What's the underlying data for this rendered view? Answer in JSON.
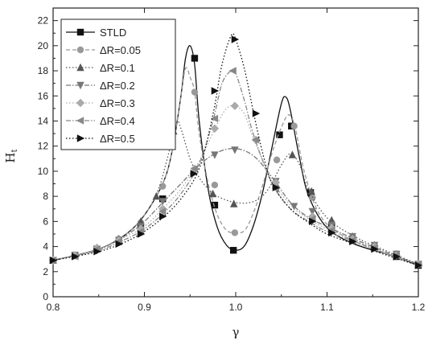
{
  "chart_data": {
    "type": "line",
    "xlabel": "γ",
    "ylabel": "H",
    "ylabel_sub": "t",
    "xlim": [
      0.8,
      1.2
    ],
    "ylim": [
      0,
      23
    ],
    "xticks": [
      "0.8",
      "0.9",
      "1.0",
      "1.1",
      "1.2"
    ],
    "xtick_values": [
      0.8,
      0.9,
      1.0,
      1.1,
      1.2
    ],
    "yticks": [
      "0",
      "2",
      "4",
      "6",
      "8",
      "10",
      "12",
      "14",
      "16",
      "18",
      "20",
      "22"
    ],
    "ytick_values": [
      0,
      2,
      4,
      6,
      8,
      10,
      12,
      14,
      16,
      18,
      20,
      22
    ],
    "grid": false,
    "legend_position": "top-left",
    "series": [
      {
        "name": "STLD",
        "marker": "square",
        "color": "#111111",
        "line": "solid",
        "curve": [
          [
            0.8,
            2.9
          ],
          [
            0.85,
            3.8
          ],
          [
            0.88,
            5.0
          ],
          [
            0.9,
            6.5
          ],
          [
            0.92,
            9.0
          ],
          [
            0.93,
            11.5
          ],
          [
            0.94,
            16.0
          ],
          [
            0.945,
            19.0
          ],
          [
            0.95,
            20.0
          ],
          [
            0.955,
            18.5
          ],
          [
            0.96,
            14.0
          ],
          [
            0.97,
            8.5
          ],
          [
            0.98,
            5.5
          ],
          [
            0.99,
            4.1
          ],
          [
            1.0,
            3.7
          ],
          [
            1.01,
            4.1
          ],
          [
            1.02,
            5.8
          ],
          [
            1.03,
            8.5
          ],
          [
            1.04,
            12.0
          ],
          [
            1.05,
            15.4
          ],
          [
            1.055,
            15.9
          ],
          [
            1.06,
            14.8
          ],
          [
            1.07,
            11.0
          ],
          [
            1.08,
            8.0
          ],
          [
            1.1,
            5.5
          ],
          [
            1.13,
            4.2
          ],
          [
            1.17,
            3.3
          ],
          [
            1.2,
            2.5
          ]
        ],
        "markers": [
          [
            0.8,
            2.9
          ],
          [
            0.824,
            3.3
          ],
          [
            0.848,
            3.8
          ],
          [
            0.872,
            4.4
          ],
          [
            0.896,
            5.5
          ],
          [
            0.92,
            7.8
          ],
          [
            0.955,
            19.0
          ],
          [
            0.977,
            7.3
          ],
          [
            0.9975,
            3.7
          ],
          [
            1.048,
            12.9
          ],
          [
            1.061,
            13.6
          ],
          [
            1.082,
            8.3
          ],
          [
            1.105,
            5.6
          ],
          [
            1.128,
            4.6
          ],
          [
            1.152,
            3.9
          ],
          [
            1.176,
            3.2
          ],
          [
            1.2,
            2.5
          ]
        ]
      },
      {
        "name": "ΔR=0.05",
        "marker": "circle",
        "color": "#999999",
        "line": "dashed",
        "curve": [
          [
            0.8,
            2.9
          ],
          [
            0.85,
            3.8
          ],
          [
            0.88,
            5.0
          ],
          [
            0.9,
            6.5
          ],
          [
            0.92,
            9.0
          ],
          [
            0.93,
            11.5
          ],
          [
            0.94,
            16.0
          ],
          [
            0.945,
            18.2
          ],
          [
            0.95,
            17.5
          ],
          [
            0.955,
            16.3
          ],
          [
            0.96,
            13.0
          ],
          [
            0.97,
            9.0
          ],
          [
            0.98,
            6.5
          ],
          [
            0.99,
            5.3
          ],
          [
            1.0,
            5.1
          ],
          [
            1.01,
            5.3
          ],
          [
            1.02,
            6.8
          ],
          [
            1.03,
            9.0
          ],
          [
            1.04,
            11.5
          ],
          [
            1.05,
            13.5
          ],
          [
            1.058,
            14.5
          ],
          [
            1.065,
            13.5
          ],
          [
            1.075,
            10.0
          ],
          [
            1.09,
            6.8
          ],
          [
            1.11,
            5.2
          ],
          [
            1.15,
            3.8
          ],
          [
            1.2,
            2.6
          ]
        ],
        "markers": [
          [
            0.8,
            2.9
          ],
          [
            0.824,
            3.3
          ],
          [
            0.848,
            3.8
          ],
          [
            0.872,
            4.6
          ],
          [
            0.896,
            5.9
          ],
          [
            0.92,
            8.8
          ],
          [
            0.955,
            16.3
          ],
          [
            0.977,
            8.9
          ],
          [
            0.999,
            5.1
          ],
          [
            1.045,
            10.9
          ],
          [
            1.064,
            13.6
          ],
          [
            1.084,
            7.9
          ],
          [
            1.105,
            5.9
          ],
          [
            1.128,
            4.7
          ],
          [
            1.152,
            4.0
          ],
          [
            1.176,
            3.3
          ],
          [
            1.2,
            2.6
          ]
        ]
      },
      {
        "name": "ΔR=0.1",
        "marker": "triangle-up",
        "color": "#555555",
        "line": "dotted",
        "curve": [
          [
            0.8,
            2.9
          ],
          [
            0.85,
            3.8
          ],
          [
            0.88,
            5.0
          ],
          [
            0.9,
            6.5
          ],
          [
            0.915,
            8.5
          ],
          [
            0.925,
            11.0
          ],
          [
            0.935,
            13.8
          ],
          [
            0.94,
            13.4
          ],
          [
            0.95,
            11.0
          ],
          [
            0.96,
            9.5
          ],
          [
            0.97,
            8.6
          ],
          [
            0.98,
            8.0
          ],
          [
            1.0,
            7.5
          ],
          [
            1.02,
            7.6
          ],
          [
            1.035,
            8.5
          ],
          [
            1.05,
            10.5
          ],
          [
            1.06,
            11.4
          ],
          [
            1.07,
            10.5
          ],
          [
            1.08,
            8.5
          ],
          [
            1.1,
            6.3
          ],
          [
            1.13,
            4.8
          ],
          [
            1.17,
            3.5
          ],
          [
            1.2,
            2.6
          ]
        ],
        "markers": [
          [
            0.8,
            2.9
          ],
          [
            0.824,
            3.3
          ],
          [
            0.848,
            3.8
          ],
          [
            0.872,
            4.6
          ],
          [
            0.896,
            6.0
          ],
          [
            0.913,
            8.0
          ],
          [
            0.932,
            13.2
          ],
          [
            0.975,
            8.2
          ],
          [
            0.998,
            7.4
          ],
          [
            1.044,
            9.0
          ],
          [
            1.062,
            11.3
          ],
          [
            1.083,
            8.4
          ],
          [
            1.105,
            6.1
          ],
          [
            1.128,
            4.8
          ],
          [
            1.152,
            4.1
          ],
          [
            1.176,
            3.4
          ],
          [
            1.2,
            2.6
          ]
        ]
      },
      {
        "name": "ΔR=0.2",
        "marker": "triangle-down",
        "color": "#777777",
        "line": "dash-dot",
        "curve": [
          [
            0.8,
            2.9
          ],
          [
            0.85,
            3.8
          ],
          [
            0.88,
            4.9
          ],
          [
            0.9,
            6.0
          ],
          [
            0.92,
            7.5
          ],
          [
            0.94,
            9.0
          ],
          [
            0.96,
            10.5
          ],
          [
            0.98,
            11.5
          ],
          [
            1.0,
            11.8
          ],
          [
            1.02,
            11.2
          ],
          [
            1.04,
            9.5
          ],
          [
            1.06,
            7.5
          ],
          [
            1.08,
            6.3
          ],
          [
            1.1,
            5.6
          ],
          [
            1.13,
            4.6
          ],
          [
            1.17,
            3.4
          ],
          [
            1.2,
            2.6
          ]
        ],
        "markers": [
          [
            0.8,
            2.9
          ],
          [
            0.824,
            3.3
          ],
          [
            0.848,
            3.7
          ],
          [
            0.872,
            4.5
          ],
          [
            0.896,
            5.6
          ],
          [
            0.92,
            7.6
          ],
          [
            0.955,
            10.0
          ],
          [
            0.977,
            11.3
          ],
          [
            0.999,
            11.7
          ],
          [
            1.044,
            9.2
          ],
          [
            1.064,
            7.2
          ],
          [
            1.084,
            6.8
          ],
          [
            1.105,
            5.7
          ],
          [
            1.128,
            4.8
          ],
          [
            1.152,
            4.1
          ],
          [
            1.176,
            3.4
          ],
          [
            1.2,
            2.6
          ]
        ]
      },
      {
        "name": "ΔR=0.3",
        "marker": "diamond",
        "color": "#aaaaaa",
        "line": "dotted",
        "curve": [
          [
            0.8,
            2.9
          ],
          [
            0.85,
            3.8
          ],
          [
            0.88,
            4.8
          ],
          [
            0.9,
            5.6
          ],
          [
            0.92,
            7.0
          ],
          [
            0.94,
            8.6
          ],
          [
            0.96,
            10.8
          ],
          [
            0.98,
            13.8
          ],
          [
            0.99,
            15.0
          ],
          [
            1.0,
            15.2
          ],
          [
            1.01,
            14.5
          ],
          [
            1.02,
            12.5
          ],
          [
            1.04,
            9.3
          ],
          [
            1.06,
            7.3
          ],
          [
            1.08,
            6.2
          ],
          [
            1.1,
            5.4
          ],
          [
            1.13,
            4.5
          ],
          [
            1.17,
            3.3
          ],
          [
            1.2,
            2.6
          ]
        ],
        "markers": [
          [
            0.8,
            2.9
          ],
          [
            0.824,
            3.3
          ],
          [
            0.848,
            3.9
          ],
          [
            0.872,
            4.5
          ],
          [
            0.896,
            5.4
          ],
          [
            0.92,
            7.0
          ],
          [
            0.955,
            10.2
          ],
          [
            0.977,
            13.4
          ],
          [
            0.999,
            15.2
          ],
          [
            1.022,
            12.5
          ],
          [
            1.044,
            9.1
          ],
          [
            1.084,
            6.4
          ],
          [
            1.105,
            5.5
          ],
          [
            1.128,
            4.6
          ],
          [
            1.152,
            4.0
          ],
          [
            1.176,
            3.3
          ],
          [
            1.2,
            2.6
          ]
        ]
      },
      {
        "name": "ΔR=0.4",
        "marker": "triangle-left",
        "color": "#888888",
        "line": "dash-dot",
        "curve": [
          [
            0.8,
            2.9
          ],
          [
            0.85,
            3.7
          ],
          [
            0.88,
            4.6
          ],
          [
            0.9,
            5.4
          ],
          [
            0.92,
            6.6
          ],
          [
            0.94,
            8.2
          ],
          [
            0.96,
            10.6
          ],
          [
            0.975,
            14.0
          ],
          [
            0.985,
            17.0
          ],
          [
            0.995,
            18.0
          ],
          [
            1.0,
            17.8
          ],
          [
            1.01,
            15.5
          ],
          [
            1.02,
            12.8
          ],
          [
            1.04,
            9.0
          ],
          [
            1.06,
            7.0
          ],
          [
            1.08,
            6.0
          ],
          [
            1.1,
            5.2
          ],
          [
            1.13,
            4.4
          ],
          [
            1.17,
            3.3
          ],
          [
            1.2,
            2.6
          ]
        ],
        "markers": [
          [
            0.8,
            2.9
          ],
          [
            0.824,
            3.2
          ],
          [
            0.848,
            3.8
          ],
          [
            0.872,
            4.4
          ],
          [
            0.896,
            5.2
          ],
          [
            0.92,
            6.8
          ],
          [
            0.955,
            10.2
          ],
          [
            0.977,
            14.2
          ],
          [
            0.997,
            18.0
          ],
          [
            1.022,
            12.5
          ],
          [
            1.044,
            8.6
          ],
          [
            1.084,
            6.2
          ],
          [
            1.105,
            5.3
          ],
          [
            1.128,
            4.5
          ],
          [
            1.152,
            3.9
          ],
          [
            1.176,
            3.3
          ],
          [
            1.2,
            2.6
          ]
        ]
      },
      {
        "name": "ΔR=0.5",
        "marker": "triangle-right",
        "color": "#111111",
        "line": "dotted",
        "curve": [
          [
            0.8,
            2.9
          ],
          [
            0.85,
            3.6
          ],
          [
            0.88,
            4.4
          ],
          [
            0.9,
            5.2
          ],
          [
            0.92,
            6.3
          ],
          [
            0.94,
            7.8
          ],
          [
            0.96,
            10.2
          ],
          [
            0.975,
            14.5
          ],
          [
            0.985,
            18.5
          ],
          [
            0.995,
            20.8
          ],
          [
            1.0,
            20.5
          ],
          [
            1.01,
            18.0
          ],
          [
            1.02,
            14.5
          ],
          [
            1.03,
            11.3
          ],
          [
            1.04,
            9.0
          ],
          [
            1.06,
            7.0
          ],
          [
            1.08,
            5.9
          ],
          [
            1.1,
            5.0
          ],
          [
            1.13,
            4.2
          ],
          [
            1.17,
            3.2
          ],
          [
            1.2,
            2.5
          ]
        ],
        "markers": [
          [
            0.8,
            2.9
          ],
          [
            0.824,
            3.2
          ],
          [
            0.848,
            3.6
          ],
          [
            0.872,
            4.2
          ],
          [
            0.896,
            5.0
          ],
          [
            0.92,
            6.4
          ],
          [
            0.954,
            9.8
          ],
          [
            0.977,
            16.4
          ],
          [
            0.999,
            20.5
          ],
          [
            1.022,
            14.6
          ],
          [
            1.044,
            8.7
          ],
          [
            1.084,
            6.0
          ],
          [
            1.105,
            5.1
          ],
          [
            1.128,
            4.4
          ],
          [
            1.152,
            3.8
          ],
          [
            1.176,
            3.2
          ],
          [
            1.2,
            2.5
          ]
        ]
      }
    ]
  }
}
